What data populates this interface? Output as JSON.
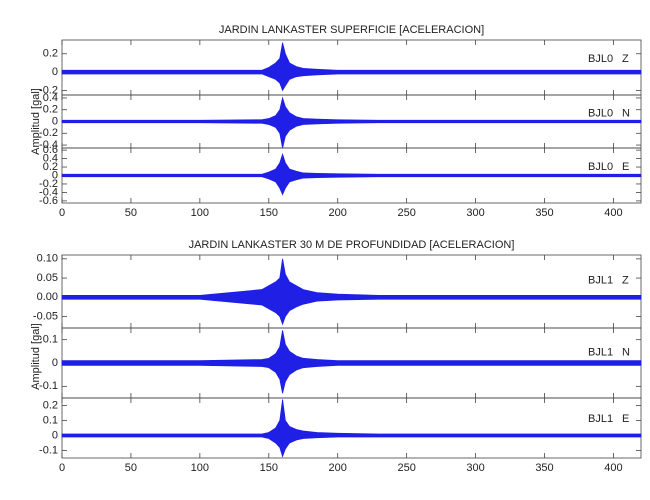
{
  "chart_data": [
    {
      "type": "seismogram",
      "title": "JARDIN LANKASTER SUPERFICIE [ACELERACION]",
      "ylabel": "Amplitud [gal]",
      "xlim": [
        0,
        420
      ],
      "xticks": [
        0,
        50,
        100,
        150,
        200,
        250,
        300,
        350,
        400
      ],
      "x": [
        0,
        100,
        145,
        150,
        155,
        158,
        160,
        162,
        165,
        170,
        175,
        185,
        200,
        230,
        300,
        420
      ],
      "color": "#1f1fe6",
      "panels": [
        {
          "station": "BJL0",
          "component": "Z",
          "ylim": [
            -0.25,
            0.35
          ],
          "yticks": [
            -0.2,
            0.0,
            0.2
          ],
          "upper": [
            0.02,
            0.02,
            0.02,
            0.05,
            0.1,
            0.15,
            0.32,
            0.2,
            0.1,
            0.06,
            0.04,
            0.03,
            0.02,
            0.02,
            0.02,
            0.02
          ],
          "lower": [
            -0.02,
            -0.02,
            -0.02,
            -0.05,
            -0.08,
            -0.12,
            -0.2,
            -0.15,
            -0.08,
            -0.05,
            -0.04,
            -0.03,
            -0.02,
            -0.02,
            -0.02,
            -0.02
          ]
        },
        {
          "station": "BJL0",
          "component": "N",
          "ylim": [
            -0.45,
            0.45
          ],
          "yticks": [
            -0.4,
            -0.2,
            0.0,
            0.2,
            0.4
          ],
          "upper": [
            0.02,
            0.02,
            0.03,
            0.05,
            0.1,
            0.2,
            0.4,
            0.25,
            0.15,
            0.08,
            0.05,
            0.04,
            0.03,
            0.02,
            0.02,
            0.02
          ],
          "lower": [
            -0.02,
            -0.02,
            -0.03,
            -0.05,
            -0.1,
            -0.2,
            -0.45,
            -0.25,
            -0.15,
            -0.08,
            -0.05,
            -0.04,
            -0.03,
            -0.02,
            -0.02,
            -0.02
          ]
        },
        {
          "station": "BJL0",
          "component": "E",
          "ylim": [
            -0.65,
            0.65
          ],
          "yticks": [
            -0.6,
            -0.4,
            -0.2,
            0.0,
            0.2,
            0.4,
            0.6
          ],
          "upper": [
            0.03,
            0.03,
            0.03,
            0.08,
            0.15,
            0.3,
            0.5,
            0.3,
            0.15,
            0.1,
            0.06,
            0.05,
            0.04,
            0.03,
            0.03,
            0.03
          ],
          "lower": [
            -0.03,
            -0.03,
            -0.03,
            -0.08,
            -0.15,
            -0.3,
            -0.45,
            -0.3,
            -0.15,
            -0.1,
            -0.06,
            -0.05,
            -0.04,
            -0.03,
            -0.03,
            -0.03
          ]
        }
      ]
    },
    {
      "type": "seismogram",
      "title": "JARDIN LANKASTER 30 M DE PROFUNDIDAD [ACELERACION]",
      "ylabel": "Amplitud [gal]",
      "xlim": [
        0,
        420
      ],
      "xticks": [
        0,
        50,
        100,
        150,
        200,
        250,
        300,
        350,
        400
      ],
      "x": [
        0,
        100,
        145,
        150,
        155,
        158,
        160,
        162,
        165,
        170,
        175,
        185,
        200,
        230,
        300,
        420
      ],
      "color": "#1f1fe6",
      "panels": [
        {
          "station": "BJL1",
          "component": "Z",
          "ylim": [
            -0.08,
            0.11
          ],
          "yticks": [
            -0.05,
            {
              "value": 0,
              "label": "0.00"
            },
            0.05,
            {
              "value": 0.1,
              "label": "0.10"
            }
          ],
          "upper": [
            0.005,
            0.005,
            0.02,
            0.03,
            0.04,
            0.05,
            0.1,
            0.06,
            0.04,
            0.03,
            0.02,
            0.012,
            0.008,
            0.005,
            0.005,
            0.005
          ],
          "lower": [
            -0.005,
            -0.005,
            -0.02,
            -0.03,
            -0.04,
            -0.05,
            -0.07,
            -0.05,
            -0.035,
            -0.025,
            -0.018,
            -0.01,
            -0.007,
            -0.005,
            -0.005,
            -0.005
          ]
        },
        {
          "station": "BJL1",
          "component": "N",
          "ylim": [
            -0.15,
            0.15
          ],
          "yticks": [
            -0.1,
            0.0,
            0.1
          ],
          "upper": [
            0.01,
            0.01,
            0.015,
            0.02,
            0.04,
            0.07,
            0.14,
            0.08,
            0.05,
            0.03,
            0.02,
            0.015,
            0.01,
            0.01,
            0.01,
            0.01
          ],
          "lower": [
            -0.01,
            -0.01,
            -0.015,
            -0.02,
            -0.04,
            -0.07,
            -0.13,
            -0.08,
            -0.05,
            -0.03,
            -0.02,
            -0.015,
            -0.01,
            -0.01,
            -0.01,
            -0.01
          ]
        },
        {
          "station": "BJL1",
          "component": "E",
          "ylim": [
            -0.15,
            0.25
          ],
          "yticks": [
            -0.1,
            0.0,
            0.1,
            0.2
          ],
          "upper": [
            0.01,
            0.01,
            0.01,
            0.02,
            0.05,
            0.1,
            0.24,
            0.1,
            0.06,
            0.04,
            0.03,
            0.02,
            0.015,
            0.01,
            0.01,
            0.01
          ],
          "lower": [
            -0.01,
            -0.01,
            -0.01,
            -0.02,
            -0.05,
            -0.08,
            -0.14,
            -0.09,
            -0.05,
            -0.03,
            -0.02,
            -0.015,
            -0.01,
            -0.01,
            -0.01,
            -0.01
          ]
        }
      ]
    }
  ]
}
